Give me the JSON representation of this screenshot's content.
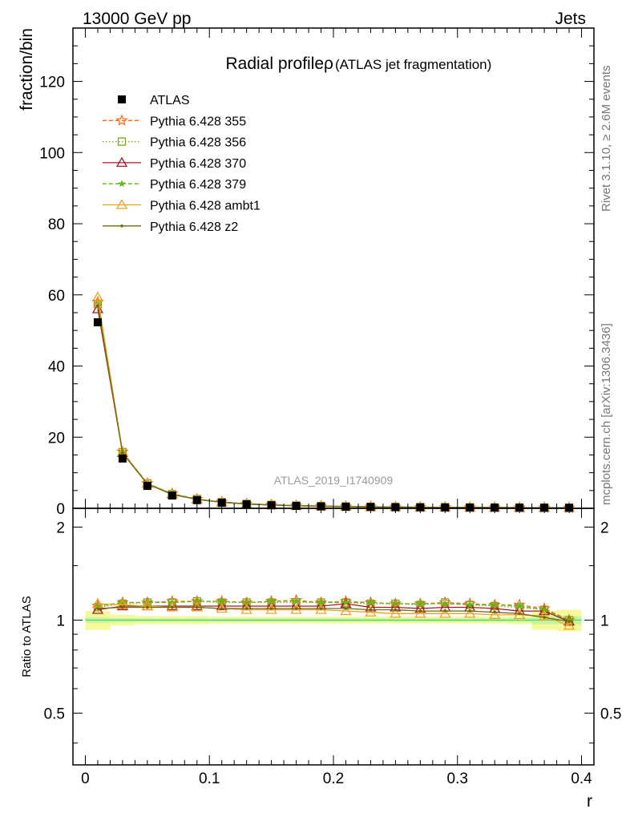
{
  "header": {
    "energy_label": "13000 GeV pp",
    "process_label": "Jets"
  },
  "side_labels": {
    "rivet": "Rivet 3.1.10, ≥ 2.6M events",
    "mcplots": "mcplots.cern.ch [arXiv:1306.3436]"
  },
  "analysis_id": "ATLAS_2019_I1740909",
  "colors": {
    "ATLAS": "#000000",
    "Pythia 6.428 355": "#ff6a1a",
    "Pythia 6.428 356": "#7fa51a",
    "Pythia 6.428 370": "#a11a2a",
    "Pythia 6.428 379": "#66b31a",
    "Pythia 6.428 ambt1": "#f0a020",
    "Pythia 6.428 z2": "#6b6b10",
    "band_inner": "#3ddc6a",
    "band_outer": "#f6f99a"
  },
  "chart_data": [
    {
      "type": "line",
      "panel": "main",
      "title": "Radial profileρ (ATLAS jet fragmentation)",
      "title_main": "Radial profileρ",
      "title_sub": "(ATLAS jet fragmentation)",
      "xlabel": "",
      "ylabel": "fraction/bin",
      "xlim": [
        -0.01,
        0.41
      ],
      "ylim": [
        0,
        135
      ],
      "yticks": [
        0,
        20,
        40,
        60,
        80,
        100,
        120
      ],
      "ytick_labels": [
        "0",
        "20",
        "40",
        "60",
        "80",
        "100",
        "120"
      ],
      "legend_position": "top-left",
      "x": [
        0.01,
        0.03,
        0.05,
        0.07,
        0.09,
        0.11,
        0.13,
        0.15,
        0.17,
        0.19,
        0.21,
        0.23,
        0.25,
        0.27,
        0.29,
        0.31,
        0.33,
        0.35,
        0.37,
        0.39
      ],
      "series": [
        {
          "name": "ATLAS",
          "marker": "square",
          "values": [
            52.3,
            14.0,
            6.3,
            3.6,
            2.3,
            1.55,
            1.12,
            0.86,
            0.68,
            0.55,
            0.46,
            0.39,
            0.33,
            0.29,
            0.26,
            0.23,
            0.21,
            0.19,
            0.17,
            0.15
          ]
        },
        {
          "name": "Pythia 6.428 355",
          "marker": "star-open",
          "dash": "dashed",
          "values": [
            58.0,
            15.9,
            7.0,
            4.1,
            2.6,
            1.78,
            1.27,
            0.99,
            0.78,
            0.62,
            0.52,
            0.44,
            0.37,
            0.32,
            0.29,
            0.26,
            0.24,
            0.21,
            0.19,
            0.15
          ]
        },
        {
          "name": "Pythia 6.428 356",
          "marker": "square-open",
          "dash": "dotted",
          "values": [
            57.4,
            15.8,
            7.0,
            4.0,
            2.6,
            1.76,
            1.26,
            0.97,
            0.77,
            0.62,
            0.52,
            0.44,
            0.37,
            0.32,
            0.29,
            0.26,
            0.23,
            0.21,
            0.18,
            0.15
          ]
        },
        {
          "name": "Pythia 6.428 370",
          "marker": "triangle-open",
          "dash": "solid",
          "values": [
            56.0,
            15.6,
            6.9,
            4.0,
            2.5,
            1.72,
            1.23,
            0.94,
            0.75,
            0.6,
            0.51,
            0.43,
            0.36,
            0.31,
            0.28,
            0.25,
            0.23,
            0.2,
            0.18,
            0.15
          ]
        },
        {
          "name": "Pythia 6.428 379",
          "marker": "star",
          "dash": "dashed",
          "values": [
            58.2,
            15.9,
            7.0,
            4.1,
            2.6,
            1.78,
            1.27,
            0.98,
            0.78,
            0.62,
            0.52,
            0.44,
            0.37,
            0.32,
            0.29,
            0.26,
            0.23,
            0.21,
            0.18,
            0.15
          ]
        },
        {
          "name": "Pythia 6.428 ambt1",
          "marker": "triangle-open",
          "dash": "solid",
          "values": [
            59.3,
            15.8,
            6.9,
            3.9,
            2.5,
            1.69,
            1.2,
            0.92,
            0.72,
            0.58,
            0.49,
            0.41,
            0.34,
            0.3,
            0.27,
            0.24,
            0.22,
            0.19,
            0.17,
            0.14
          ]
        },
        {
          "name": "Pythia 6.428 z2",
          "marker": "dot",
          "dash": "solid",
          "values": [
            57.0,
            15.5,
            6.8,
            3.9,
            2.5,
            1.69,
            1.2,
            0.92,
            0.73,
            0.58,
            0.49,
            0.41,
            0.35,
            0.3,
            0.27,
            0.24,
            0.22,
            0.19,
            0.17,
            0.15
          ]
        }
      ]
    },
    {
      "type": "line",
      "panel": "ratio",
      "title": "",
      "xlabel": "r",
      "ylabel": "Ratio to ATLAS",
      "xlim": [
        -0.01,
        0.41
      ],
      "ylim": [
        0.34,
        2.3
      ],
      "yscale": "log",
      "yticks": [
        0.5,
        1,
        2
      ],
      "ytick_labels": [
        "0.5",
        "1",
        "2"
      ],
      "xticks": [
        0,
        0.1,
        0.2,
        0.3,
        0.4
      ],
      "xtick_labels": [
        "0",
        "0.1",
        "0.2",
        "0.3",
        "0.4"
      ],
      "x": [
        0.01,
        0.03,
        0.05,
        0.07,
        0.09,
        0.11,
        0.13,
        0.15,
        0.17,
        0.19,
        0.21,
        0.23,
        0.25,
        0.27,
        0.29,
        0.31,
        0.33,
        0.35,
        0.37,
        0.39
      ],
      "uncertainty": {
        "stat_half_width": [
          0.02,
          0.015,
          0.012,
          0.012,
          0.012,
          0.012,
          0.012,
          0.012,
          0.012,
          0.012,
          0.012,
          0.012,
          0.012,
          0.012,
          0.012,
          0.012,
          0.012,
          0.015,
          0.03,
          0.03
        ],
        "total_half_width": [
          0.07,
          0.04,
          0.03,
          0.03,
          0.03,
          0.025,
          0.025,
          0.025,
          0.025,
          0.025,
          0.025,
          0.025,
          0.025,
          0.025,
          0.025,
          0.025,
          0.025,
          0.03,
          0.07,
          0.08
        ]
      },
      "series": [
        {
          "name": "Pythia 6.428 355",
          "values": [
            1.11,
            1.14,
            1.14,
            1.15,
            1.15,
            1.15,
            1.14,
            1.15,
            1.16,
            1.14,
            1.15,
            1.14,
            1.13,
            1.13,
            1.14,
            1.13,
            1.12,
            1.12,
            1.09,
            1.0
          ]
        },
        {
          "name": "Pythia 6.428 356",
          "values": [
            1.1,
            1.13,
            1.14,
            1.14,
            1.15,
            1.14,
            1.14,
            1.14,
            1.14,
            1.14,
            1.14,
            1.13,
            1.13,
            1.12,
            1.14,
            1.12,
            1.11,
            1.1,
            1.08,
            1.0
          ]
        },
        {
          "name": "Pythia 6.428 370",
          "values": [
            1.08,
            1.11,
            1.11,
            1.11,
            1.11,
            1.11,
            1.11,
            1.11,
            1.11,
            1.11,
            1.13,
            1.1,
            1.1,
            1.09,
            1.1,
            1.1,
            1.09,
            1.07,
            1.07,
            0.99
          ]
        },
        {
          "name": "Pythia 6.428 379",
          "values": [
            1.11,
            1.14,
            1.14,
            1.14,
            1.15,
            1.15,
            1.14,
            1.15,
            1.15,
            1.14,
            1.14,
            1.14,
            1.13,
            1.13,
            1.13,
            1.12,
            1.12,
            1.11,
            1.08,
            1.0
          ]
        },
        {
          "name": "Pythia 6.428 ambt1",
          "values": [
            1.13,
            1.12,
            1.11,
            1.1,
            1.1,
            1.09,
            1.08,
            1.08,
            1.08,
            1.08,
            1.07,
            1.06,
            1.05,
            1.05,
            1.05,
            1.05,
            1.04,
            1.04,
            1.03,
            0.96
          ]
        },
        {
          "name": "Pythia 6.428 z2",
          "values": [
            1.09,
            1.1,
            1.1,
            1.1,
            1.1,
            1.09,
            1.09,
            1.09,
            1.09,
            1.09,
            1.09,
            1.08,
            1.08,
            1.07,
            1.07,
            1.07,
            1.06,
            1.05,
            1.02,
            0.99
          ]
        }
      ]
    }
  ]
}
